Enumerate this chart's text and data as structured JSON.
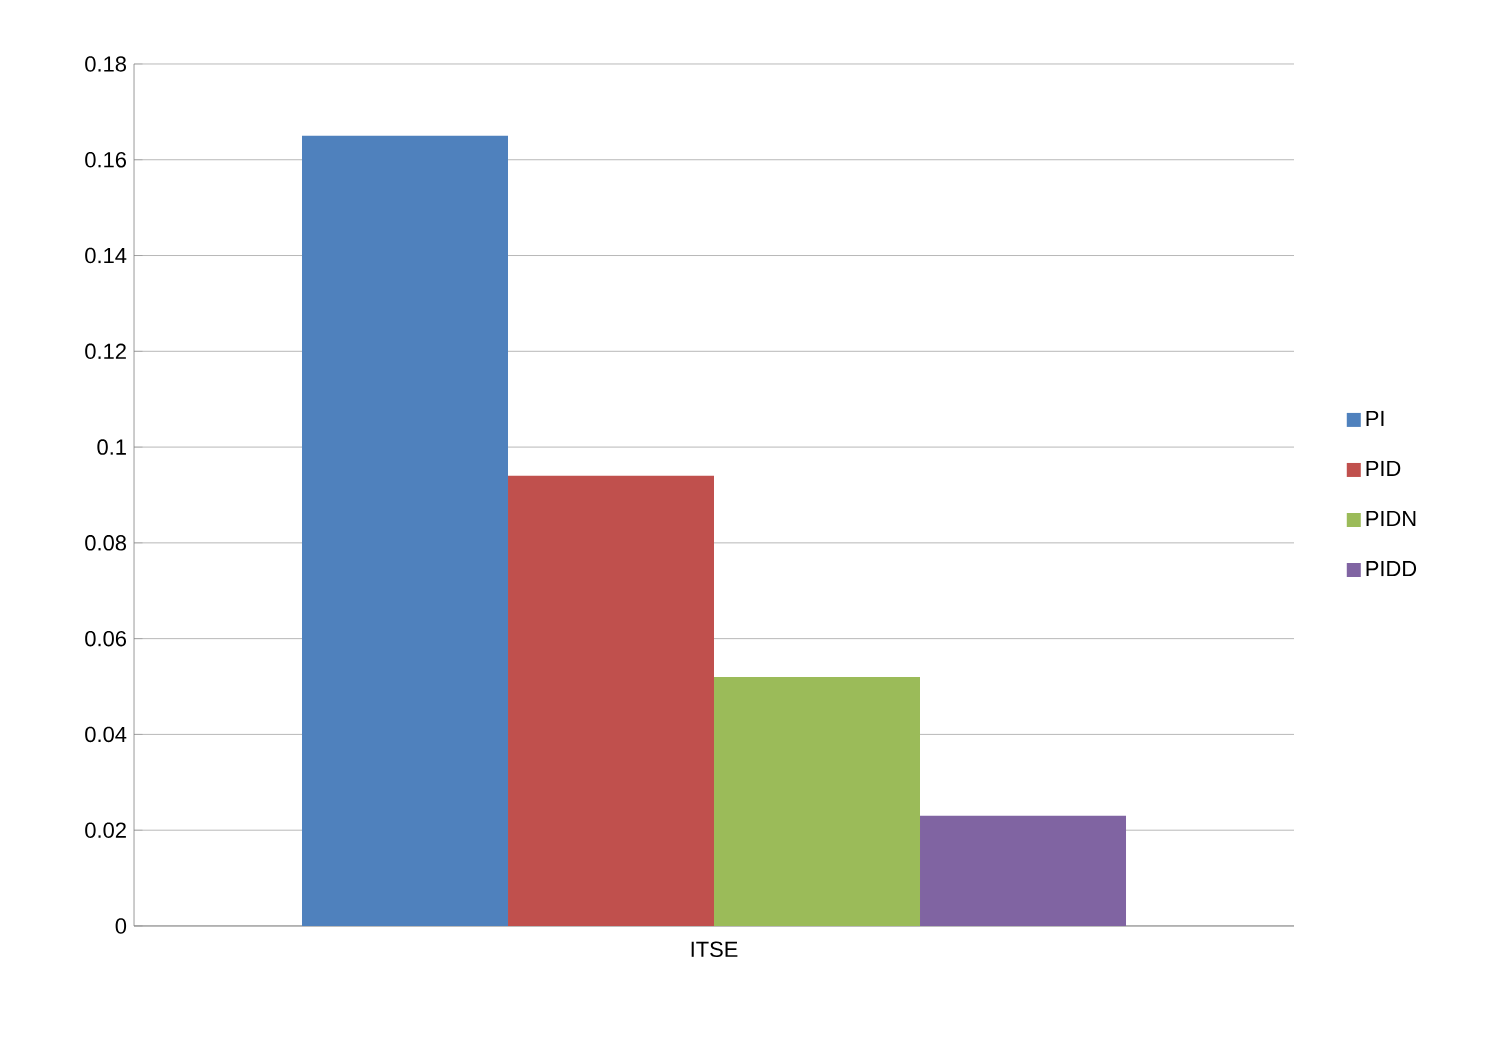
{
  "chart_data": {
    "type": "bar",
    "categories": [
      "ITSE"
    ],
    "series": [
      {
        "name": "PI",
        "color": "#4f81bd",
        "values": [
          0.165
        ]
      },
      {
        "name": "PID",
        "color": "#c0504d",
        "values": [
          0.094
        ]
      },
      {
        "name": "PIDN",
        "color": "#9bbb59",
        "values": [
          0.052
        ]
      },
      {
        "name": "PIDD",
        "color": "#8064a2",
        "values": [
          0.023
        ]
      }
    ],
    "ylim": [
      0,
      0.18
    ],
    "yticks": [
      0,
      0.02,
      0.04,
      0.06,
      0.08,
      0.1,
      0.12,
      0.14,
      0.16,
      0.18
    ],
    "grid": "y",
    "legend": "right",
    "marker": "square"
  }
}
